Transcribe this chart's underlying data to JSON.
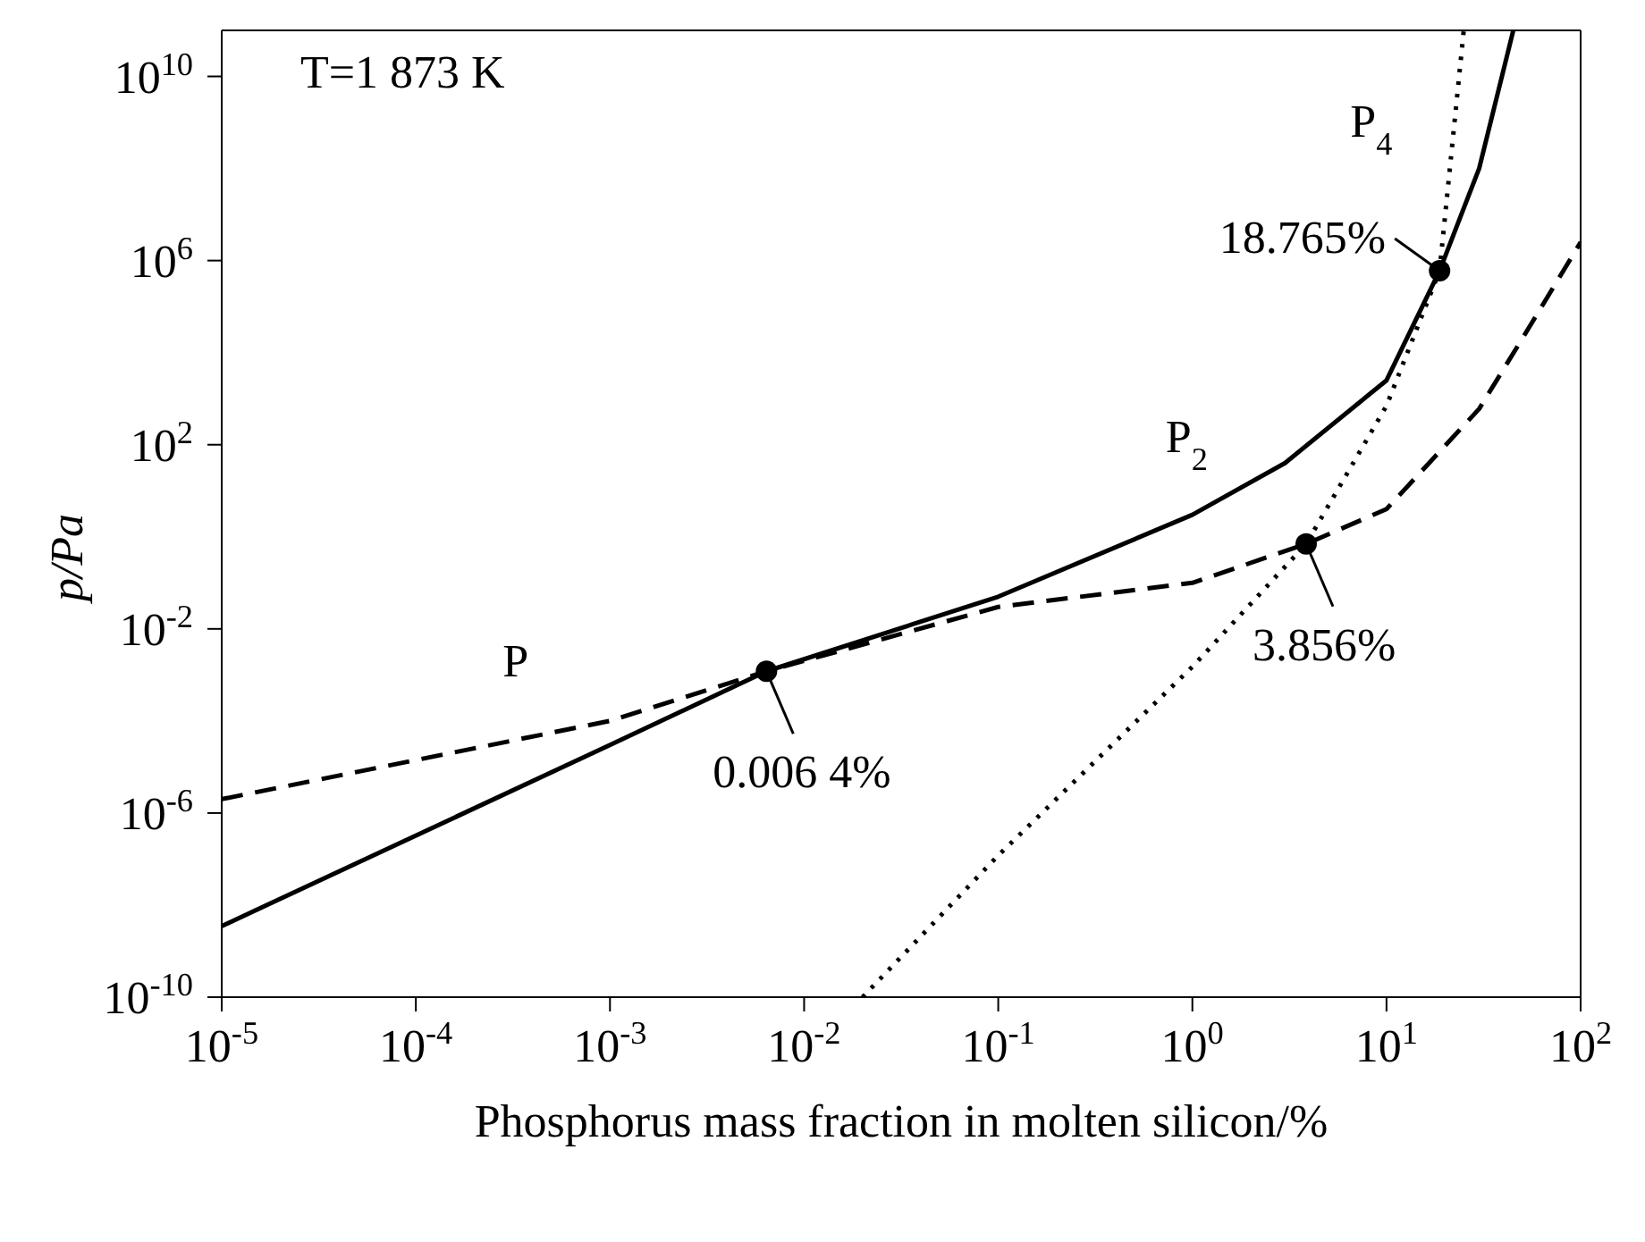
{
  "chart_data": {
    "type": "line",
    "xlabel": "Phosphorus mass fraction in molten silicon/%",
    "ylabel": "p/Pa",
    "log": "xy",
    "xlim": [
      1e-05,
      100
    ],
    "ylim": [
      1e-10,
      100000000000.0
    ],
    "xticks": [
      {
        "value": 1e-05,
        "label": "10$^{-5}$"
      },
      {
        "value": 0.0001,
        "label": "10$^{-4}$"
      },
      {
        "value": 0.001,
        "label": "10$^{-3}$"
      },
      {
        "value": 0.01,
        "label": "10$^{-2}$"
      },
      {
        "value": 0.1,
        "label": "10$^{-1}$"
      },
      {
        "value": 1,
        "label": "10$^{0}$"
      },
      {
        "value": 10,
        "label": "10$^{1}$"
      },
      {
        "value": 100,
        "label": "10$^{2}$"
      }
    ],
    "yticks": [
      {
        "value": 1e-10,
        "label": "10$^{-10}$"
      },
      {
        "value": 1e-06,
        "label": "10$^{-6}$"
      },
      {
        "value": 0.01,
        "label": "10$^{-2}$"
      },
      {
        "value": 100,
        "label": "10$^{2}$"
      },
      {
        "value": 1000000,
        "label": "10$^{6}$"
      },
      {
        "value": 10000000000,
        "label": "10$^{10}$"
      }
    ],
    "series": [
      {
        "name": "P",
        "color": "#000000",
        "line_style": "dashed",
        "x": [
          1e-05,
          0.001,
          0.0064,
          0.1,
          1,
          3.856,
          10,
          30,
          50,
          100
        ],
        "values": [
          2e-06,
          0.0001,
          0.0012,
          0.03,
          0.1,
          0.7,
          4,
          600,
          20000,
          2500000
        ]
      },
      {
        "name": "P$_{2}$",
        "color": "#000000",
        "line_style": "solid",
        "x": [
          1e-05,
          0.001,
          0.0064,
          0.1,
          1,
          3,
          10,
          18.765,
          30,
          45
        ],
        "values": [
          3.5e-09,
          3e-05,
          0.0012,
          0.05,
          3,
          40,
          2500,
          600000,
          100000000,
          100000000000
        ]
      },
      {
        "name": "P$_{4}$",
        "color": "#000000",
        "line_style": "dotted",
        "x": [
          0.02,
          0.1,
          1,
          3.856,
          10,
          18.765,
          25
        ],
        "values": [
          1e-10,
          1.2e-07,
          0.0015,
          0.7,
          700,
          600000,
          100000000000
        ]
      }
    ],
    "annotations": [
      "T=1 873 K",
      {
        "text": "0.006 4%",
        "x": 0.0064,
        "y": 0.0012
      },
      {
        "text": "3.856%",
        "x": 3.856,
        "y": 0.7
      },
      {
        "text": "18.765%",
        "x": 18.765,
        "y": 600000
      }
    ]
  }
}
